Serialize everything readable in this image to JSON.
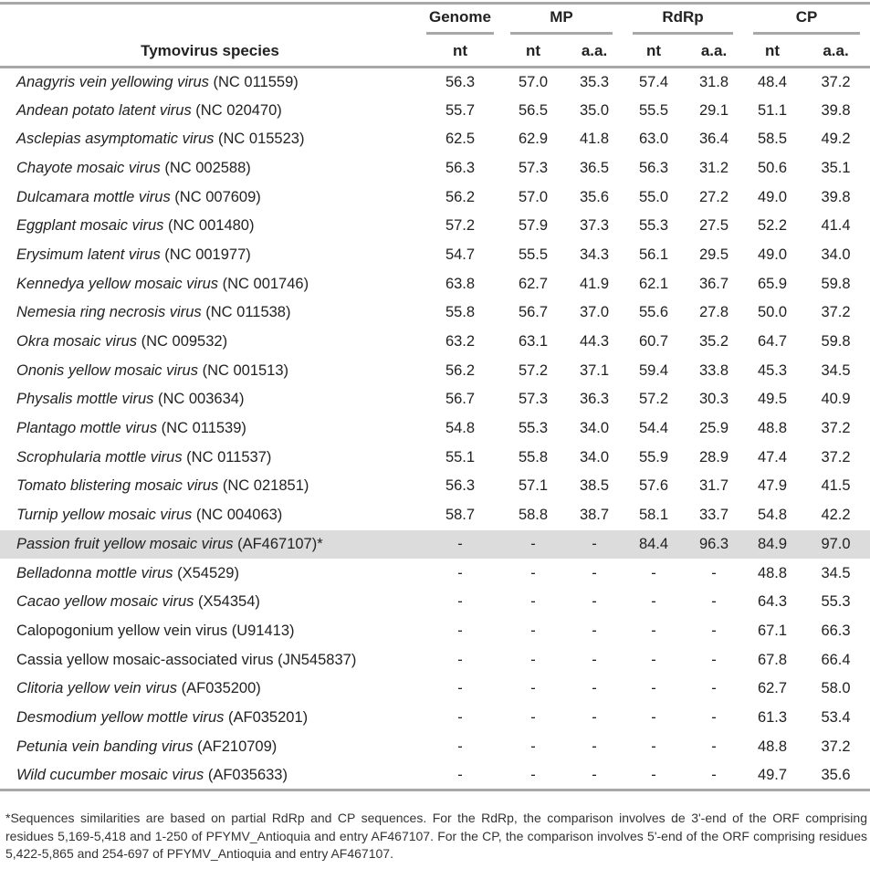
{
  "header": {
    "species_label": "Tymovirus species",
    "groups": [
      "Genome",
      "MP",
      "RdRp",
      "CP"
    ],
    "subheaders": [
      "nt",
      "nt",
      "a.a.",
      "nt",
      "a.a.",
      "nt",
      "a.a."
    ]
  },
  "rows": [
    {
      "name": "Anagyris vein yellowing virus",
      "acc": " (NC 011559)",
      "italic": true,
      "values": [
        "56.3",
        "57.0",
        "35.3",
        "57.4",
        "31.8",
        "48.4",
        "37.2"
      ]
    },
    {
      "name": "Andean potato latent virus",
      "acc": " (NC 020470)",
      "italic": true,
      "values": [
        "55.7",
        "56.5",
        "35.0",
        "55.5",
        "29.1",
        "51.1",
        "39.8"
      ]
    },
    {
      "name": "Asclepias asymptomatic virus",
      "acc": " (NC 015523)",
      "italic": true,
      "values": [
        "62.5",
        "62.9",
        "41.8",
        "63.0",
        "36.4",
        "58.5",
        "49.2"
      ]
    },
    {
      "name": "Chayote mosaic virus",
      "acc": " (NC 002588)",
      "italic": true,
      "values": [
        "56.3",
        "57.3",
        "36.5",
        "56.3",
        "31.2",
        "50.6",
        "35.1"
      ]
    },
    {
      "name": "Dulcamara mottle virus",
      "acc": " (NC 007609)",
      "italic": true,
      "values": [
        "56.2",
        "57.0",
        "35.6",
        "55.0",
        "27.2",
        "49.0",
        "39.8"
      ]
    },
    {
      "name": "Eggplant mosaic virus",
      "acc": " (NC 001480)",
      "italic": true,
      "values": [
        "57.2",
        "57.9",
        "37.3",
        "55.3",
        "27.5",
        "52.2",
        "41.4"
      ]
    },
    {
      "name": "Erysimum latent virus",
      "acc": " (NC 001977)",
      "italic": true,
      "values": [
        "54.7",
        "55.5",
        "34.3",
        "56.1",
        "29.5",
        "49.0",
        "34.0"
      ]
    },
    {
      "name": "Kennedya yellow mosaic virus",
      "acc": " (NC 001746)",
      "italic": true,
      "values": [
        "63.8",
        "62.7",
        "41.9",
        "62.1",
        "36.7",
        "65.9",
        "59.8"
      ]
    },
    {
      "name": "Nemesia ring necrosis virus",
      "acc": " (NC 011538)",
      "italic": true,
      "values": [
        "55.8",
        "56.7",
        "37.0",
        "55.6",
        "27.8",
        "50.0",
        "37.2"
      ]
    },
    {
      "name": "Okra mosaic virus",
      "acc": " (NC 009532)",
      "italic": true,
      "values": [
        "63.2",
        "63.1",
        "44.3",
        "60.7",
        "35.2",
        "64.7",
        "59.8"
      ]
    },
    {
      "name": "Ononis yellow mosaic virus",
      "acc": " (NC 001513)",
      "italic": true,
      "values": [
        "56.2",
        "57.2",
        "37.1",
        "59.4",
        "33.8",
        "45.3",
        "34.5"
      ]
    },
    {
      "name": "Physalis mottle virus",
      "acc": " (NC 003634)",
      "italic": true,
      "values": [
        "56.7",
        "57.3",
        "36.3",
        "57.2",
        "30.3",
        "49.5",
        "40.9"
      ]
    },
    {
      "name": "Plantago mottle virus",
      "acc": " (NC 011539)",
      "italic": true,
      "values": [
        "54.8",
        "55.3",
        "34.0",
        "54.4",
        "25.9",
        "48.8",
        "37.2"
      ]
    },
    {
      "name": "Scrophularia mottle virus",
      "acc": " (NC 011537)",
      "italic": true,
      "values": [
        "55.1",
        "55.8",
        "34.0",
        "55.9",
        "28.9",
        "47.4",
        "37.2"
      ]
    },
    {
      "name": "Tomato blistering mosaic virus",
      "acc": " (NC 021851)",
      "italic": true,
      "values": [
        "56.3",
        "57.1",
        "38.5",
        "57.6",
        "31.7",
        "47.9",
        "41.5"
      ]
    },
    {
      "name": "Turnip yellow mosaic virus",
      "acc": " (NC 004063)",
      "italic": true,
      "values": [
        "58.7",
        "58.8",
        "38.7",
        "58.1",
        "33.7",
        "54.8",
        "42.2"
      ]
    },
    {
      "name": "Passion fruit yellow mosaic virus",
      "acc": " (AF467107)*",
      "italic": true,
      "highlight": true,
      "values": [
        "-",
        "-",
        "-",
        "84.4",
        "96.3",
        "84.9",
        "97.0"
      ]
    },
    {
      "name": "Belladonna mottle virus",
      "acc": " (X54529)",
      "italic": true,
      "values": [
        "-",
        "-",
        "-",
        "-",
        "-",
        "48.8",
        "34.5"
      ]
    },
    {
      "name": "Cacao yellow mosaic virus",
      "acc": " (X54354)",
      "italic": true,
      "values": [
        "-",
        "-",
        "-",
        "-",
        "-",
        "64.3",
        "55.3"
      ]
    },
    {
      "name": "Calopogonium yellow vein virus",
      "acc": " (U91413)",
      "italic": false,
      "values": [
        "-",
        "-",
        "-",
        "-",
        "-",
        "67.1",
        "66.3"
      ]
    },
    {
      "name": "Cassia yellow mosaic-associated virus",
      "acc": " (JN545837)",
      "italic": false,
      "values": [
        "-",
        "-",
        "-",
        "-",
        "-",
        "67.8",
        "66.4"
      ]
    },
    {
      "name": "Clitoria yellow vein virus",
      "acc": " (AF035200)",
      "italic": true,
      "values": [
        "-",
        "-",
        "-",
        "-",
        "-",
        "62.7",
        "58.0"
      ]
    },
    {
      "name": "Desmodium yellow mottle virus",
      "acc": " (AF035201)",
      "italic": true,
      "values": [
        "-",
        "-",
        "-",
        "-",
        "-",
        "61.3",
        "53.4"
      ]
    },
    {
      "name": "Petunia vein banding virus",
      "acc": " (AF210709)",
      "italic": true,
      "values": [
        "-",
        "-",
        "-",
        "-",
        "-",
        "48.8",
        "37.2"
      ]
    },
    {
      "name": "Wild cucumber mosaic virus",
      "acc": " (AF035633)",
      "italic": true,
      "values": [
        "-",
        "-",
        "-",
        "-",
        "-",
        "49.7",
        "35.6"
      ]
    }
  ],
  "footnote": "*Sequences similarities are based on partial RdRp and CP sequences. For the RdRp, the comparison involves de 3'-end of the ORF comprising residues 5,169-5,418 and 1-250 of PFYMV_Antioquia and entry AF467107. For the CP, the comparison involves 5'-end of the ORF comprising residues 5,422-5,865 and 254-697 of PFYMV_Antioquia and entry AF467107."
}
